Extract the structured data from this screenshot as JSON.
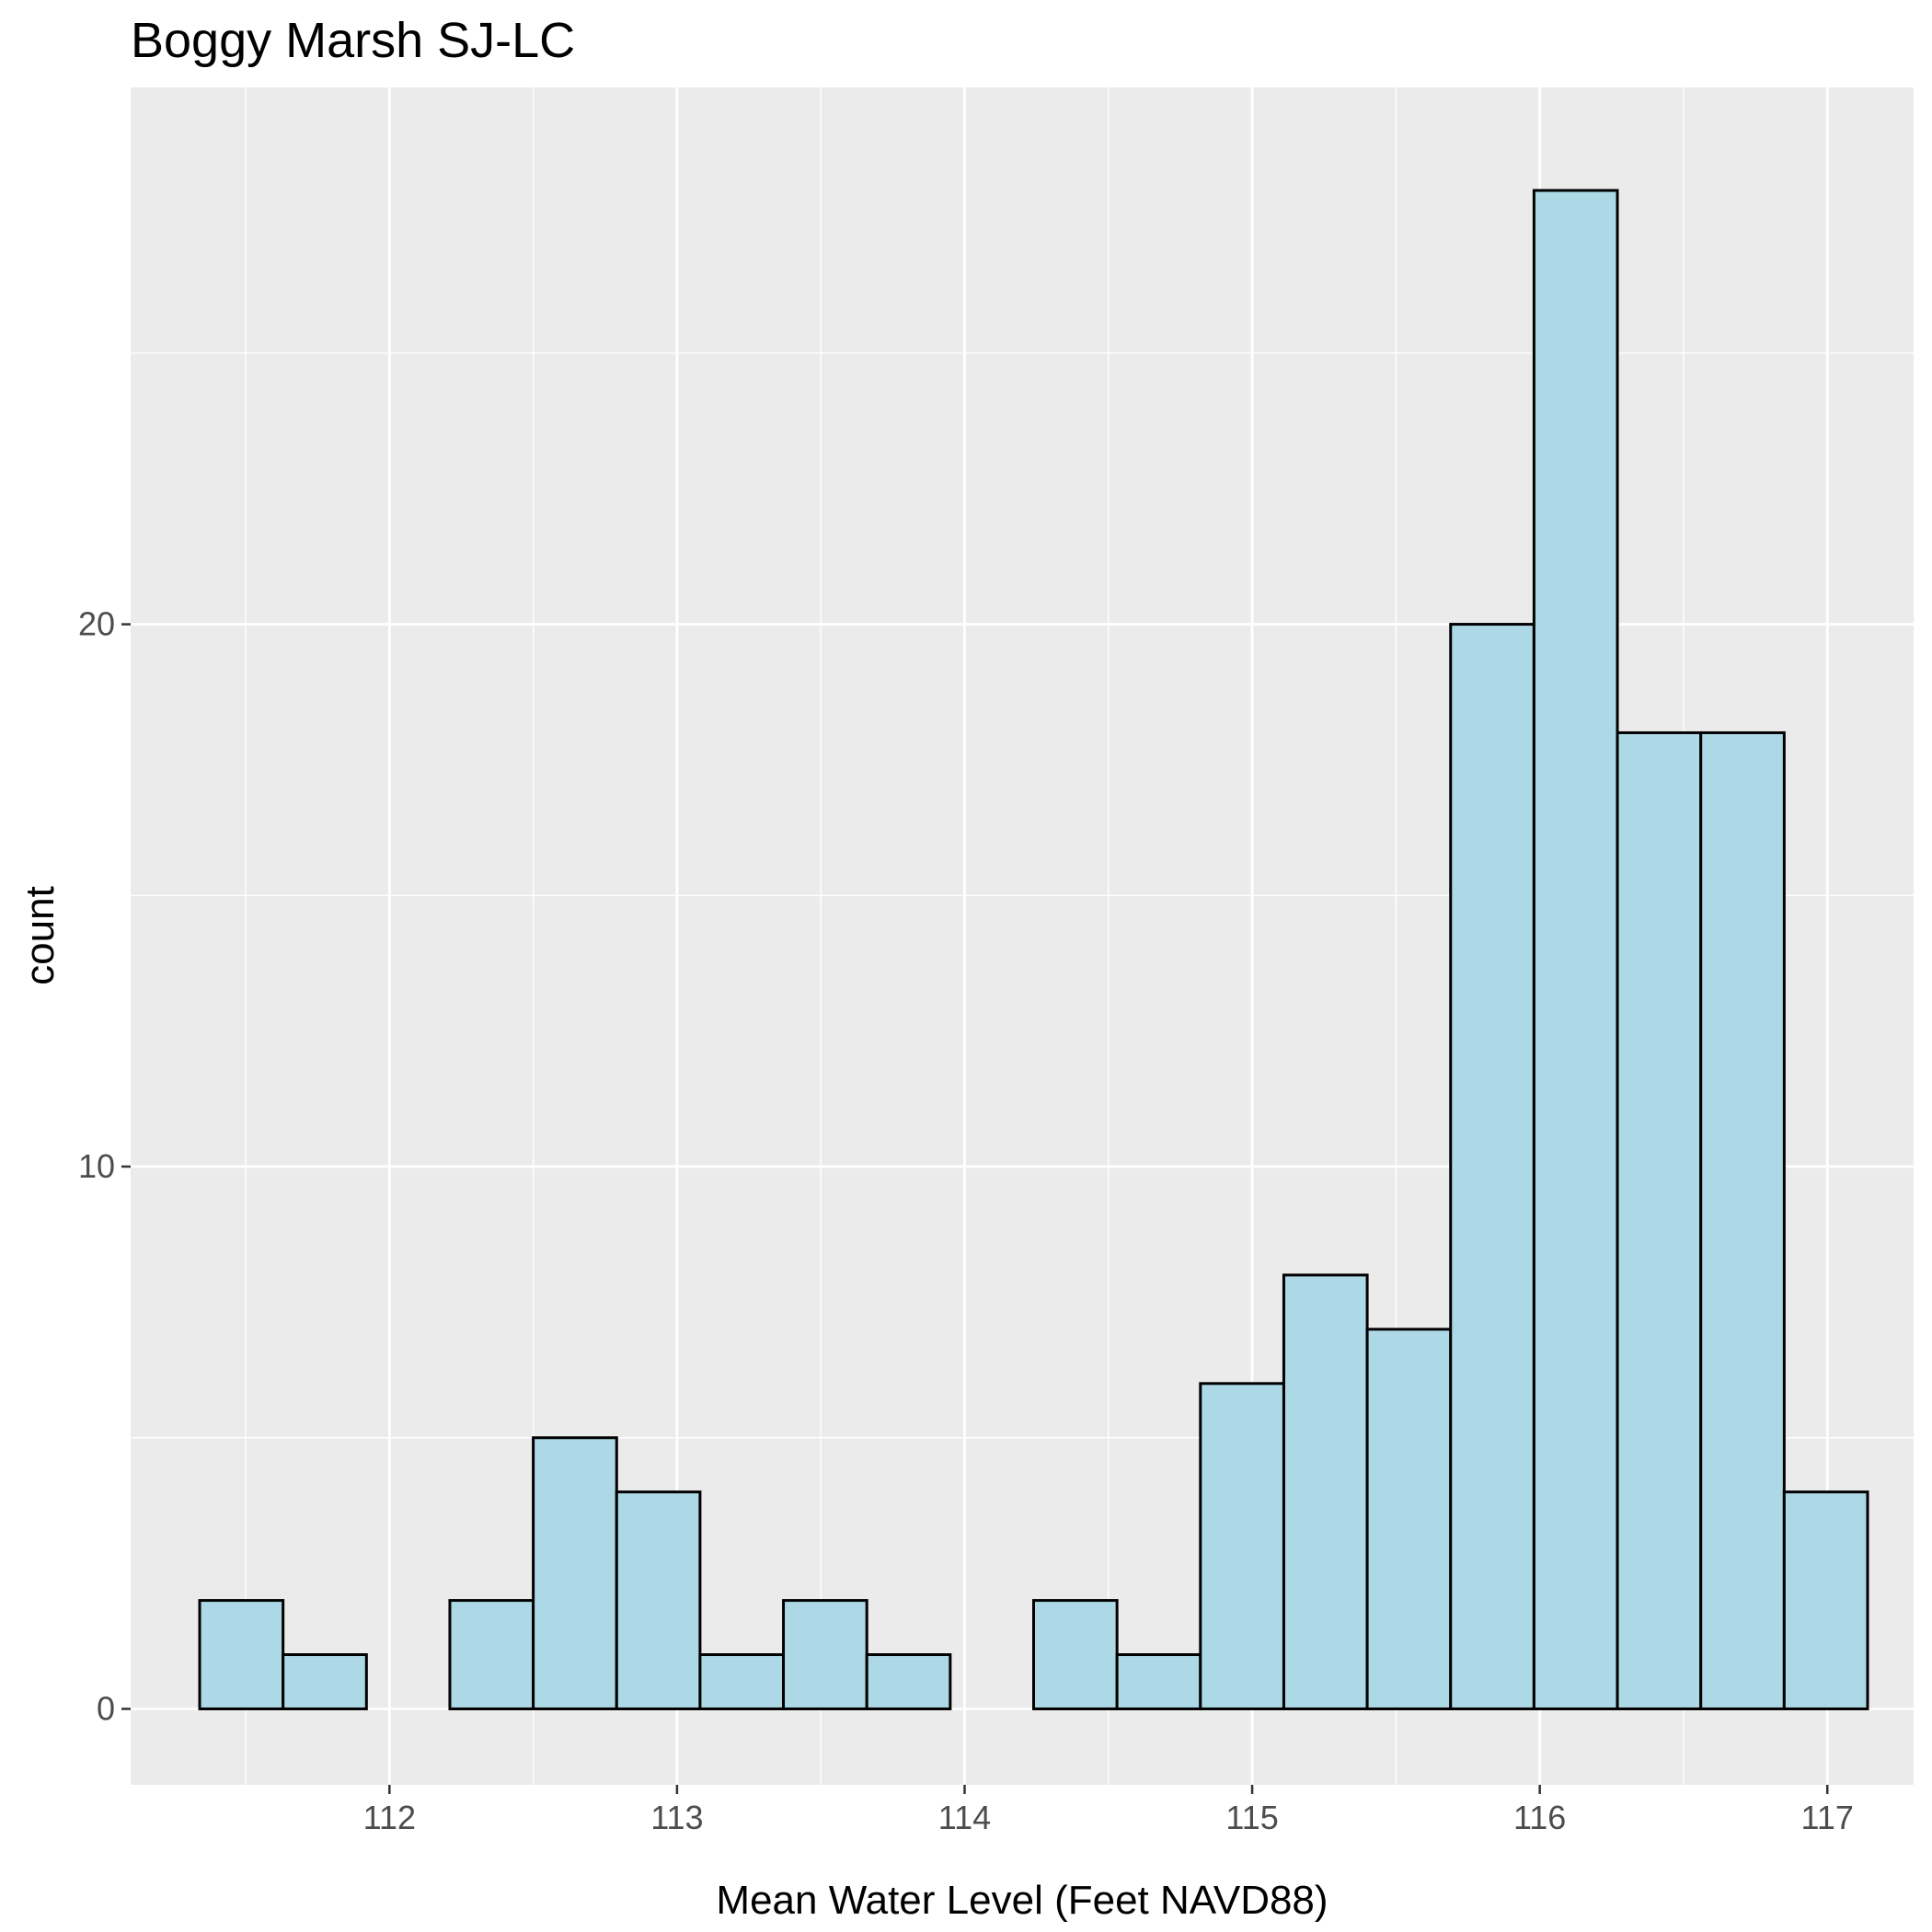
{
  "chart_data": {
    "type": "bar",
    "subtype": "histogram",
    "title": "Boggy Marsh SJ-LC",
    "xlabel": "Mean Water Level (Feet NAVD88)",
    "ylabel": "count",
    "x_ticks": [
      "112",
      "113",
      "114",
      "115",
      "116",
      "117"
    ],
    "y_ticks": [
      "0",
      "10",
      "20"
    ],
    "xlim": [
      111.1,
      117.3
    ],
    "ylim": [
      -1.4,
      29.9
    ],
    "grid": true,
    "bin_width": 0.29,
    "bins": [
      {
        "start": 111.34,
        "end": 111.63,
        "count": 2
      },
      {
        "start": 111.63,
        "end": 111.92,
        "count": 1
      },
      {
        "start": 111.92,
        "end": 112.21,
        "count": 0
      },
      {
        "start": 112.21,
        "end": 112.5,
        "count": 2
      },
      {
        "start": 112.5,
        "end": 112.79,
        "count": 5
      },
      {
        "start": 112.79,
        "end": 113.08,
        "count": 4
      },
      {
        "start": 113.08,
        "end": 113.37,
        "count": 1
      },
      {
        "start": 113.37,
        "end": 113.66,
        "count": 2
      },
      {
        "start": 113.66,
        "end": 113.95,
        "count": 1
      },
      {
        "start": 113.95,
        "end": 114.24,
        "count": 0
      },
      {
        "start": 114.24,
        "end": 114.53,
        "count": 2
      },
      {
        "start": 114.53,
        "end": 114.82,
        "count": 1
      },
      {
        "start": 114.82,
        "end": 115.11,
        "count": 6
      },
      {
        "start": 115.11,
        "end": 115.4,
        "count": 8
      },
      {
        "start": 115.4,
        "end": 115.69,
        "count": 7
      },
      {
        "start": 115.69,
        "end": 115.98,
        "count": 20
      },
      {
        "start": 115.98,
        "end": 116.27,
        "count": 28
      },
      {
        "start": 116.27,
        "end": 116.56,
        "count": 18
      },
      {
        "start": 116.56,
        "end": 116.85,
        "count": 18
      },
      {
        "start": 116.85,
        "end": 117.14,
        "count": 4
      }
    ],
    "colors": {
      "bar_fill": "#add8e6",
      "bar_outline": "#000000",
      "panel_background": "#ebebeb",
      "grid": "#ffffff"
    }
  }
}
